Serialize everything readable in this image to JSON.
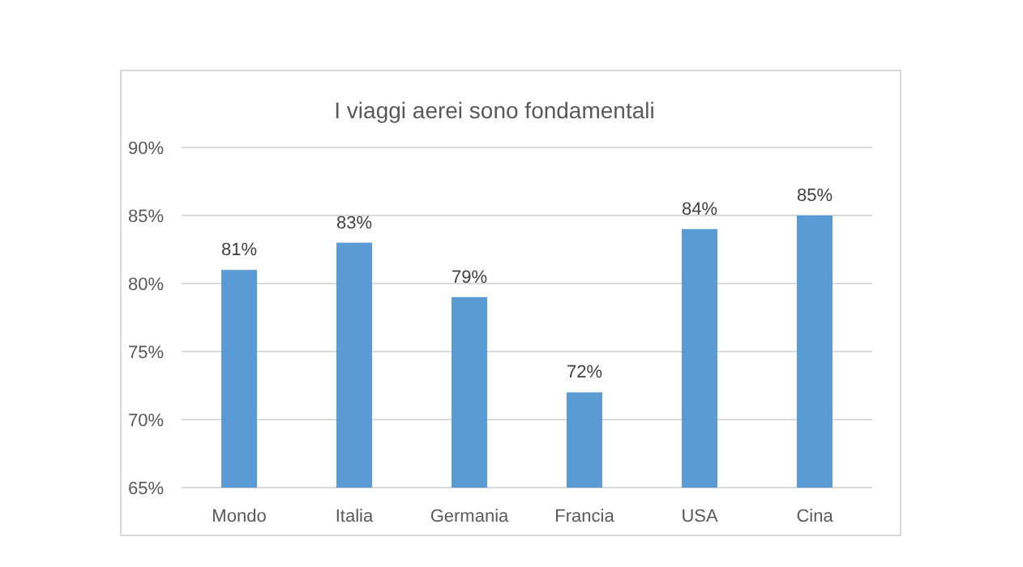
{
  "chart_data": {
    "type": "bar",
    "title": "I viaggi aerei sono fondamentali",
    "categories": [
      "Mondo",
      "Italia",
      "Germania",
      "Francia",
      "USA",
      "Cina"
    ],
    "values": [
      81,
      83,
      79,
      72,
      84,
      85
    ],
    "color": "#5b9bd5",
    "value_labels": [
      "81%",
      "83%",
      "79%",
      "72%",
      "84%",
      "85%"
    ],
    "ylim": [
      65,
      90
    ],
    "yticks": [
      {
        "value": 65,
        "label": "65%"
      },
      {
        "value": 70,
        "label": "70%"
      },
      {
        "value": 75,
        "label": "75%"
      },
      {
        "value": 80,
        "label": "80%"
      },
      {
        "value": 85,
        "label": "85%"
      },
      {
        "value": 90,
        "label": "90%"
      }
    ],
    "grid": "y"
  }
}
